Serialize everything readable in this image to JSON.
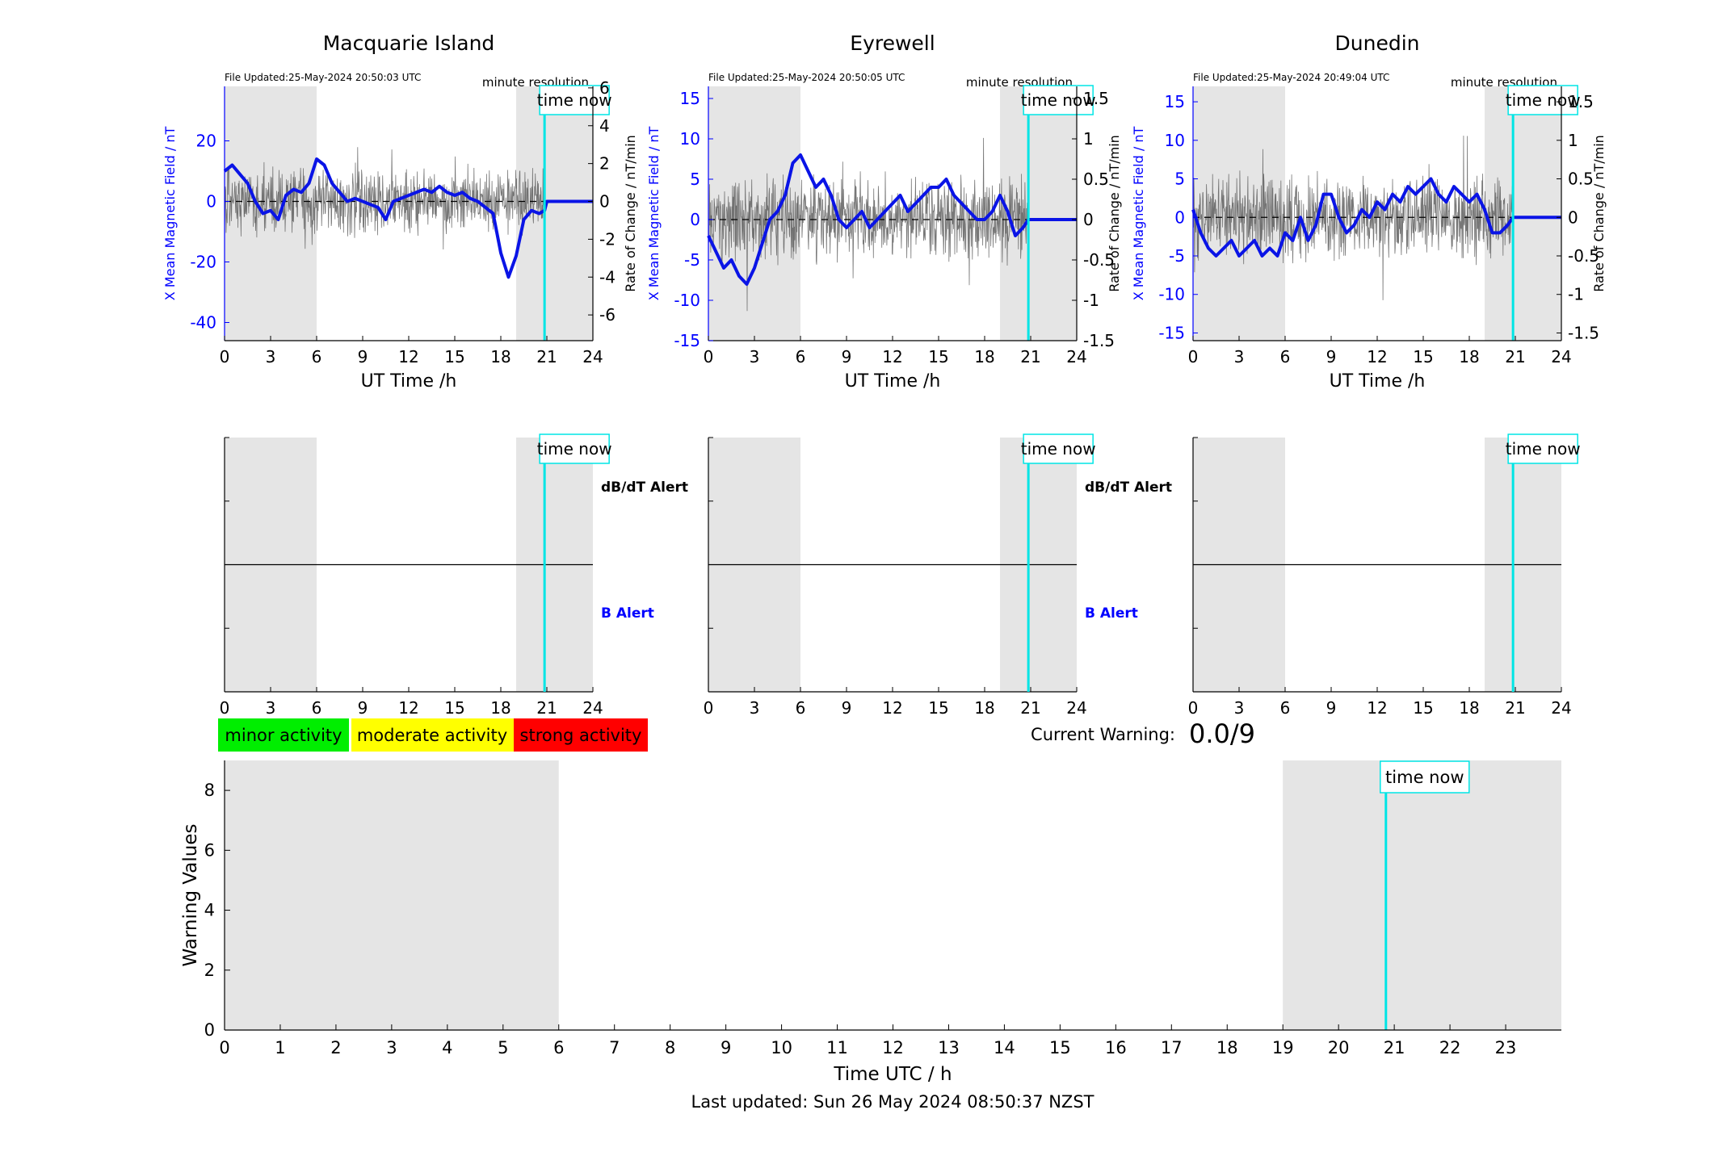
{
  "stations": [
    {
      "title": "Macquarie Island",
      "file_updated": "File Updated:25-May-2024 20:50:03 UTC",
      "resolution": "minute resolution",
      "left_ylabel": "X Mean Magnetic Field / nT",
      "right_ylabel": "Rate of Change / nT/min",
      "left_ylim": [
        -46,
        38
      ],
      "left_ticks": [
        -40,
        -20,
        0,
        20
      ],
      "right_ylim": [
        -7.36,
        6.08
      ],
      "right_ticks": [
        -6,
        -4,
        -2,
        0,
        2,
        4,
        6
      ],
      "show_alert_labels": true
    },
    {
      "title": "Eyrewell",
      "file_updated": "File Updated:25-May-2024 20:50:05 UTC",
      "resolution": "minute resolution",
      "left_ylabel": "X Mean Magnetic Field / nT",
      "right_ylabel": "Rate of Change / nT/min",
      "left_ylim": [
        -15,
        16.5
      ],
      "left_ticks": [
        -15,
        -10,
        -5,
        0,
        5,
        10,
        15
      ],
      "right_ylim": [
        -1.5,
        1.65
      ],
      "right_ticks": [
        -1.5,
        -1,
        -0.5,
        0,
        0.5,
        1,
        1.5
      ],
      "show_alert_labels": true
    },
    {
      "title": "Dunedin",
      "file_updated": "File Updated:25-May-2024 20:49:04 UTC",
      "resolution": "minute resolution",
      "left_ylabel": "X Mean Magnetic Field / nT",
      "right_ylabel": "Rate of Change / nT/min",
      "left_ylim": [
        -16,
        17
      ],
      "left_ticks": [
        -15,
        -10,
        -5,
        0,
        5,
        10,
        15
      ],
      "right_ylim": [
        -1.6,
        1.7
      ],
      "right_ticks": [
        -1.5,
        -1,
        -0.5,
        0,
        0.5,
        1,
        1.5
      ],
      "show_alert_labels": false
    }
  ],
  "chart_data": [
    {
      "type": "line",
      "title": "Macquarie Island",
      "xlabel": "UT Time /h",
      "ylabel": "X Mean Magnetic Field / nT",
      "y2label": "Rate of Change / nT/min",
      "xlim": [
        0,
        24
      ],
      "ylim": [
        -46,
        38
      ],
      "shaded_x_ranges": [
        [
          0,
          6
        ],
        [
          19,
          24
        ]
      ],
      "time_now": 20.85,
      "series": [
        {
          "x": [
            0,
            0.5,
            1,
            1.5,
            2,
            2.5,
            3,
            3.5,
            4,
            4.5,
            5,
            5.5,
            6,
            6.5,
            7,
            7.5,
            8,
            8.5,
            9,
            9.5,
            10,
            10.5,
            11,
            11.5,
            12,
            12.5,
            13,
            13.5,
            14,
            14.5,
            15,
            15.5,
            16,
            16.5,
            17,
            17.5,
            18,
            18.5,
            19,
            19.5,
            20,
            20.5,
            20.85,
            21,
            22,
            23,
            24
          ],
          "y": [
            10,
            12,
            9,
            6,
            0,
            -4,
            -3,
            -6,
            2,
            4,
            3,
            6,
            14,
            12,
            6,
            3,
            0,
            1,
            0,
            -1,
            -2,
            -6,
            0,
            1,
            2,
            3,
            4,
            3,
            5,
            3,
            2,
            3,
            1,
            0,
            -2,
            -4,
            -17,
            -25,
            -18,
            -6,
            -3,
            -4,
            -3,
            0,
            0,
            0,
            0
          ]
        }
      ],
      "rate_of_change_noise_band": 1.5
    },
    {
      "type": "line",
      "title": "Eyrewell",
      "xlabel": "UT Time /h",
      "ylabel": "X Mean Magnetic Field / nT",
      "y2label": "Rate of Change / nT/min",
      "xlim": [
        0,
        24
      ],
      "ylim": [
        -15,
        16.5
      ],
      "shaded_x_ranges": [
        [
          0,
          6
        ],
        [
          19,
          24
        ]
      ],
      "time_now": 20.85,
      "series": [
        {
          "x": [
            0,
            0.5,
            1,
            1.5,
            2,
            2.5,
            3,
            3.5,
            4,
            4.5,
            5,
            5.5,
            6,
            6.5,
            7,
            7.5,
            8,
            8.5,
            9,
            9.5,
            10,
            10.5,
            11,
            11.5,
            12,
            12.5,
            13,
            13.5,
            14,
            14.5,
            15,
            15.5,
            16,
            16.5,
            17,
            17.5,
            18,
            18.5,
            19,
            19.5,
            20,
            20.5,
            20.85,
            21,
            22,
            23,
            24
          ],
          "y": [
            -2,
            -4,
            -6,
            -5,
            -7,
            -8,
            -6,
            -3,
            0,
            1,
            3,
            7,
            8,
            6,
            4,
            5,
            3,
            0,
            -1,
            0,
            1,
            -1,
            0,
            1,
            2,
            3,
            1,
            2,
            3,
            4,
            4,
            5,
            3,
            2,
            1,
            0,
            0,
            1,
            3,
            1,
            -2,
            -1,
            0,
            0,
            0,
            0,
            0
          ]
        }
      ],
      "rate_of_change_noise_band": 0.45
    },
    {
      "type": "line",
      "title": "Dunedin",
      "xlabel": "UT Time /h",
      "ylabel": "X Mean Magnetic Field / nT",
      "y2label": "Rate of Change / nT/min",
      "xlim": [
        0,
        24
      ],
      "ylim": [
        -16,
        17
      ],
      "shaded_x_ranges": [
        [
          0,
          6
        ],
        [
          19,
          24
        ]
      ],
      "time_now": 20.85,
      "series": [
        {
          "x": [
            0,
            0.5,
            1,
            1.5,
            2,
            2.5,
            3,
            3.5,
            4,
            4.5,
            5,
            5.5,
            6,
            6.5,
            7,
            7.5,
            8,
            8.5,
            9,
            9.5,
            10,
            10.5,
            11,
            11.5,
            12,
            12.5,
            13,
            13.5,
            14,
            14.5,
            15,
            15.5,
            16,
            16.5,
            17,
            17.5,
            18,
            18.5,
            19,
            19.5,
            20,
            20.5,
            20.85,
            21,
            22,
            23,
            24
          ],
          "y": [
            1,
            -2,
            -4,
            -5,
            -4,
            -3,
            -5,
            -4,
            -3,
            -5,
            -4,
            -5,
            -2,
            -3,
            0,
            -3,
            -1,
            3,
            3,
            0,
            -2,
            -1,
            1,
            0,
            2,
            1,
            3,
            2,
            4,
            3,
            4,
            5,
            3,
            2,
            4,
            3,
            2,
            3,
            1,
            -2,
            -2,
            -1,
            0,
            0,
            0,
            0,
            0
          ]
        }
      ],
      "rate_of_change_noise_band": 0.45
    },
    {
      "type": "line",
      "title": "",
      "xlabel": "Time UTC / h",
      "ylabel": "Warning Values",
      "xlim": [
        0,
        24
      ],
      "ylim": [
        0,
        9
      ],
      "x_ticks": [
        0,
        1,
        2,
        3,
        4,
        5,
        6,
        7,
        8,
        9,
        10,
        11,
        12,
        13,
        14,
        15,
        16,
        17,
        18,
        19,
        20,
        21,
        22,
        23
      ],
      "y_ticks": [
        0,
        2,
        4,
        6,
        8
      ],
      "shaded_x_ranges": [
        [
          0,
          6
        ],
        [
          19,
          24
        ]
      ],
      "time_now": 20.85,
      "series": []
    }
  ],
  "ut_x_ticks": [
    0,
    3,
    6,
    9,
    12,
    15,
    18,
    21,
    24
  ],
  "time_now_label": "time now",
  "alerts": {
    "dbdt_label": "dB/dT Alert",
    "b_label": "B Alert"
  },
  "legend": {
    "minor": "minor activity",
    "moderate": "moderate activity",
    "strong": "strong activity"
  },
  "warning": {
    "label": "Current Warning:",
    "value": "0.0/9"
  },
  "footer": "Last updated: Sun 26 May 2024 08:50:37 NZST",
  "colors": {
    "field_line": "#0a14e6",
    "time_now": "#00e5e5",
    "shade": "#e5e5e5",
    "minor": "#00ee00",
    "moderate": "#ffff00",
    "strong": "#ff0000",
    "axis_blue": "#0000ff"
  }
}
